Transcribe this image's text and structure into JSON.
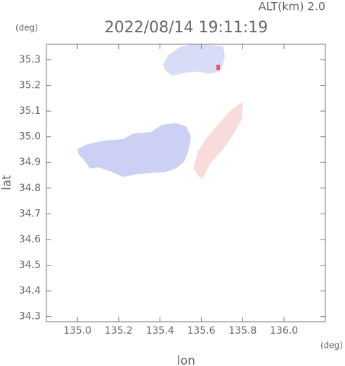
{
  "chart_data": {
    "type": "map",
    "title": "2022/08/14 19:11:19",
    "subtitle": "ALT(km) 2.0",
    "x_label": "lon",
    "x_unit": "(deg)",
    "y_label": "lat",
    "y_unit": "(deg)",
    "xlim": [
      134.85,
      136.2
    ],
    "ylim": [
      34.28,
      35.36
    ],
    "xticks": [
      {
        "value": 135,
        "label": "135.0"
      },
      135.2,
      135.4,
      135.6,
      135.8,
      {
        "value": 136,
        "label": "136.0"
      }
    ],
    "yticks": [
      34.3,
      34.4,
      34.5,
      34.6,
      34.7,
      34.8,
      34.9,
      {
        "value": 35,
        "label": "35.0"
      },
      35.1,
      35.2,
      35.3
    ]
  }
}
